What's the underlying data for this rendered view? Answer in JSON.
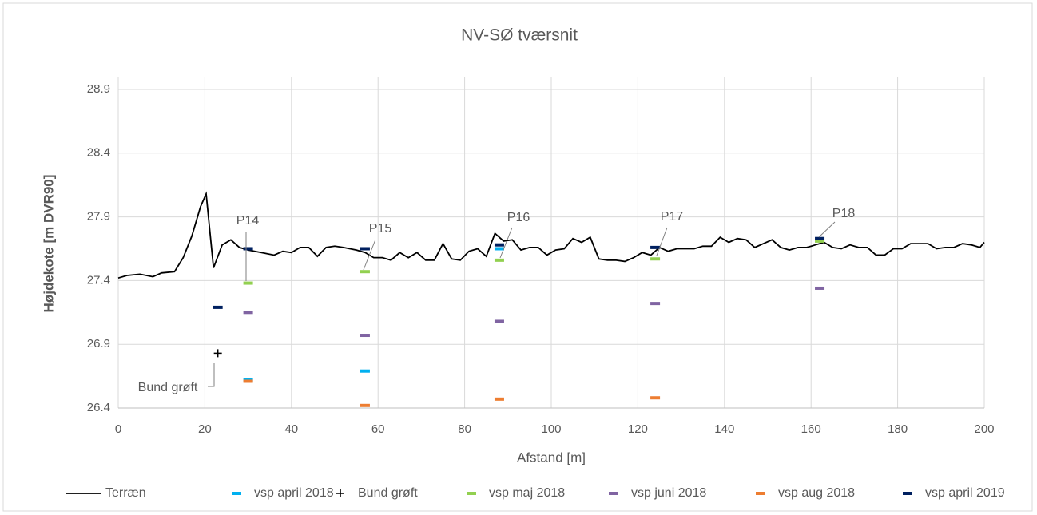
{
  "chart_data": {
    "type": "scatter",
    "title": "NV-SØ tværsnit",
    "x_label": "Afstand [m]",
    "y_label": "Højdekote [m DVR90]",
    "xlim": [
      0,
      200
    ],
    "xticks": [
      0,
      20,
      40,
      60,
      80,
      100,
      120,
      140,
      160,
      180,
      200
    ],
    "ylim": [
      26.4,
      29.0
    ],
    "yticks": [
      26.4,
      26.9,
      27.4,
      27.9,
      28.4,
      28.9
    ],
    "grid": true,
    "legend": "bottom",
    "series": [
      {
        "name": "Terræn",
        "color": "#000000",
        "style": "line",
        "x": [
          0,
          2,
          5,
          8,
          10,
          13,
          15,
          17,
          19,
          20.3,
          22,
          24,
          26,
          28,
          30,
          33,
          36,
          38,
          40,
          42,
          44,
          46,
          48,
          50,
          52,
          55,
          57,
          59,
          61,
          63,
          65,
          67,
          69,
          71,
          73,
          75,
          77,
          79,
          81,
          83,
          85,
          87,
          89,
          91,
          93,
          95,
          97,
          99,
          101,
          103,
          105,
          107,
          109,
          111,
          113,
          115,
          117,
          119,
          121,
          123,
          125,
          127,
          129,
          131,
          133,
          135,
          137,
          139,
          141,
          143,
          145,
          147,
          149,
          151,
          153,
          155,
          157,
          159,
          161,
          163,
          165,
          167,
          169,
          171,
          173,
          175,
          177,
          179,
          181,
          183,
          185,
          187,
          189,
          191,
          193,
          195,
          197,
          199,
          200
        ],
        "values": [
          27.42,
          27.44,
          27.45,
          27.43,
          27.46,
          27.47,
          27.58,
          27.75,
          27.98,
          28.08,
          27.5,
          27.68,
          27.72,
          27.66,
          27.64,
          27.62,
          27.6,
          27.63,
          27.62,
          27.66,
          27.66,
          27.59,
          27.66,
          27.67,
          27.66,
          27.64,
          27.62,
          27.58,
          27.58,
          27.56,
          27.62,
          27.58,
          27.62,
          27.56,
          27.56,
          27.69,
          27.57,
          27.56,
          27.63,
          27.65,
          27.59,
          27.77,
          27.71,
          27.72,
          27.64,
          27.66,
          27.66,
          27.6,
          27.64,
          27.65,
          27.73,
          27.7,
          27.74,
          27.57,
          27.56,
          27.56,
          27.55,
          27.58,
          27.62,
          27.6,
          27.66,
          27.63,
          27.65,
          27.65,
          27.65,
          27.67,
          27.67,
          27.74,
          27.7,
          27.73,
          27.72,
          27.66,
          27.69,
          27.72,
          27.66,
          27.64,
          27.66,
          27.66,
          27.68,
          27.7,
          27.66,
          27.65,
          27.68,
          27.66,
          27.66,
          27.6,
          27.6,
          27.65,
          27.65,
          27.69,
          27.69,
          27.69,
          27.65,
          27.66,
          27.66,
          27.69,
          27.68,
          27.66,
          27.7
        ]
      },
      {
        "name": "vsp april 2018",
        "color": "#00b0f0",
        "style": "dash",
        "x": [
          30,
          57,
          88
        ],
        "values": [
          26.62,
          26.69,
          27.65
        ]
      },
      {
        "name": "Bund grøft",
        "color": "#000000",
        "style": "plus",
        "x": [
          23
        ],
        "values": [
          26.83
        ]
      },
      {
        "name": "vsp maj 2018",
        "color": "#92d050",
        "style": "dash",
        "x": [
          30,
          57,
          88,
          124,
          162
        ],
        "values": [
          27.38,
          27.47,
          27.56,
          27.57,
          27.71
        ]
      },
      {
        "name": "vsp juni 2018",
        "color": "#8064a2",
        "style": "dash",
        "x": [
          30,
          57,
          88,
          124,
          162
        ],
        "values": [
          27.15,
          26.97,
          27.08,
          27.22,
          27.34
        ]
      },
      {
        "name": "vsp aug 2018",
        "color": "#ed7d31",
        "style": "dash",
        "x": [
          30,
          57,
          88,
          124
        ],
        "values": [
          26.61,
          26.42,
          26.47,
          26.48
        ]
      },
      {
        "name": "vsp april 2019",
        "color": "#002060",
        "style": "dash",
        "x": [
          23,
          30,
          57,
          88,
          124,
          162
        ],
        "values": [
          27.19,
          27.65,
          27.65,
          27.68,
          27.66,
          27.73
        ]
      }
    ],
    "annotations": [
      "P14",
      "P15",
      "P16",
      "P17",
      "P18",
      "Bund grøft"
    ]
  }
}
